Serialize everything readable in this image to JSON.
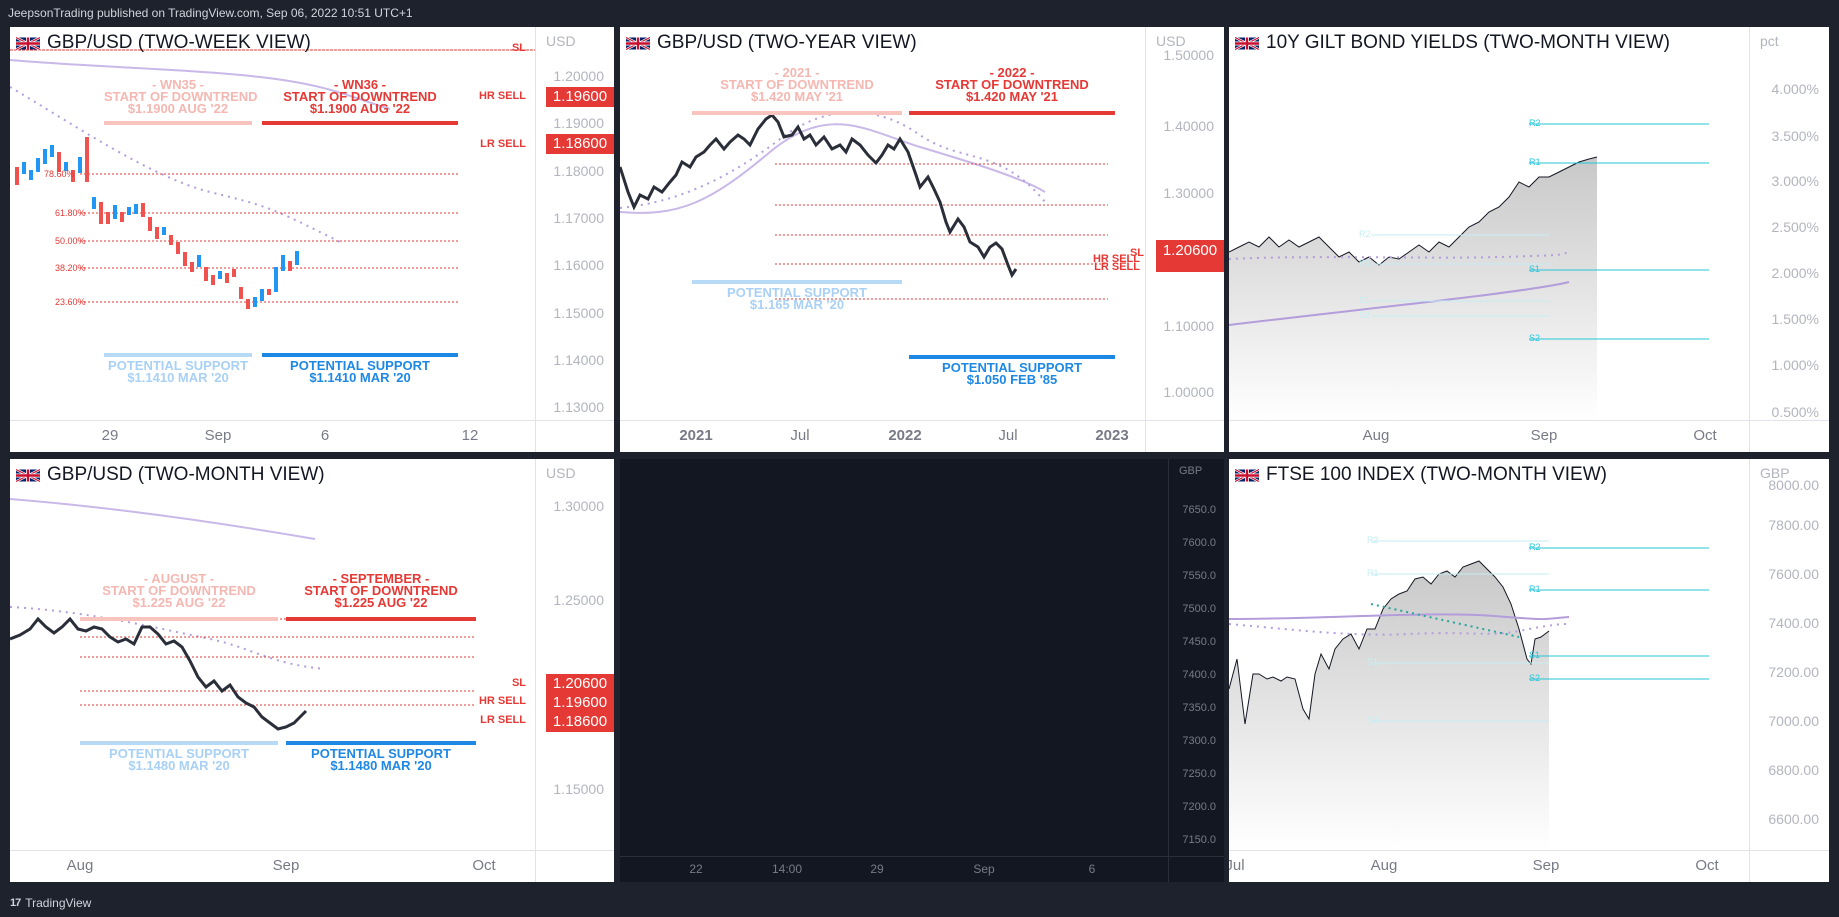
{
  "header": {
    "text": "JeepsonTrading published on TradingView.com, Sep 06, 2022 10:51 UTC+1"
  },
  "footer": {
    "logo": "17",
    "brand": "TradingView"
  },
  "colors": {
    "red": "#e53935",
    "blue": "#1e88e5",
    "cyan": "#26c6da",
    "lavender": "#b39ddb",
    "candle_up": "#2196f3",
    "candle_down": "#ef5350"
  },
  "panels": {
    "p1": {
      "title": "GBP/USD (TWO-WEEK VIEW)",
      "unit": "USD",
      "price_ticks": [
        "1.20000",
        "1.19000",
        "1.18000",
        "1.17000",
        "1.16000",
        "1.15000",
        "1.14000",
        "1.13000"
      ],
      "time_ticks": [
        "29",
        "Sep",
        "6",
        "12"
      ],
      "levels": {
        "sl": "SL",
        "hr_sell": "HR SELL",
        "lr_sell": "LR SELL"
      },
      "price_boxes": {
        "hr": "1.19600",
        "lr": "1.18600"
      },
      "fib_labels": [
        "78.60%",
        "61.80%",
        "50.00%",
        "38.20%",
        "23.60%"
      ],
      "ann_faded_top": [
        "- WN35 -",
        "START OF DOWNTREND",
        "$1.1900 AUG '22"
      ],
      "ann_red_top": [
        "- WN36 -",
        "START OF DOWNTREND",
        "$1.1900 AUG '22"
      ],
      "ann_faded_bottom": [
        "POTENTIAL SUPPORT",
        "$1.1410 MAR '20"
      ],
      "ann_blue_bottom": [
        "POTENTIAL SUPPORT",
        "$1.1410 MAR '20"
      ]
    },
    "p2": {
      "title": "GBP/USD (TWO-YEAR VIEW)",
      "unit": "USD",
      "price_ticks": [
        "1.50000",
        "1.40000",
        "1.30000",
        "1.10000",
        "1.00000"
      ],
      "time_ticks": [
        "2021",
        "Jul",
        "2022",
        "Jul",
        "2023"
      ],
      "levels": {
        "sl": "SL",
        "hr_sell": "HR SELL",
        "lr_sell": "LR SELL"
      },
      "price_box": "1.20600",
      "ann_faded_top": [
        "- 2021 -",
        "START OF DOWNTREND",
        "$1.420 MAY '21"
      ],
      "ann_red_top": [
        "- 2022 -",
        "START OF DOWNTREND",
        "$1.420 MAY '21"
      ],
      "ann_faded_bottom": [
        "POTENTIAL SUPPORT",
        "$1.165 MAR '20"
      ],
      "ann_blue_bottom": [
        "POTENTIAL SUPPORT",
        "$1.050 FEB '85"
      ]
    },
    "p3": {
      "title": "10Y GILT BOND YIELDS (TWO-MONTH VIEW)",
      "unit": "pct",
      "price_ticks": [
        "4.000%",
        "3.500%",
        "3.000%",
        "2.500%",
        "2.000%",
        "1.500%",
        "1.000%",
        "0.500%"
      ],
      "time_ticks": [
        "Aug",
        "Sep",
        "Oct"
      ],
      "pivot_labels": [
        "R2",
        "R1",
        "S1",
        "S2"
      ],
      "faded_pivot_labels": [
        "R2",
        "R1",
        "S1",
        "S2"
      ]
    },
    "p4": {
      "title": "GBP/USD (TWO-MONTH VIEW)",
      "unit": "USD",
      "price_ticks": [
        "1.30000",
        "1.25000",
        "1.15000"
      ],
      "time_ticks": [
        "Aug",
        "Sep",
        "Oct"
      ],
      "levels": {
        "sl": "SL",
        "hr_sell": "HR SELL",
        "lr_sell": "LR SELL"
      },
      "price_boxes": {
        "sl": "1.20600",
        "hr": "1.19600",
        "lr": "1.18600"
      },
      "ann_faded_top": [
        "- AUGUST -",
        "START OF DOWNTREND",
        "$1.225 AUG '22"
      ],
      "ann_red_top": [
        "- SEPTEMBER -",
        "START OF DOWNTREND",
        "$1.225 AUG '22"
      ],
      "ann_faded_bottom": [
        "POTENTIAL SUPPORT",
        "$1.1480 MAR '20"
      ],
      "ann_blue_bottom": [
        "POTENTIAL SUPPORT",
        "$1.1480 MAR '20"
      ]
    },
    "p5": {
      "unit": "GBP",
      "price_ticks": [
        "7650.0",
        "7600.0",
        "7550.0",
        "7500.0",
        "7450.0",
        "7400.0",
        "7350.0",
        "7300.0",
        "7250.0",
        "7200.0",
        "7150.0"
      ],
      "time_ticks": [
        "22",
        "14:00",
        "29",
        "Sep",
        "6"
      ]
    },
    "p6": {
      "title": "FTSE 100 INDEX (TWO-MONTH VIEW)",
      "unit": "GBP",
      "price_ticks": [
        "8000.00",
        "7800.00",
        "7600.00",
        "7400.00",
        "7200.00",
        "7000.00",
        "6800.00",
        "6600.00"
      ],
      "time_ticks": [
        "Jul",
        "Aug",
        "Sep",
        "Oct"
      ],
      "pivot_labels": [
        "R2",
        "R1",
        "S1",
        "S2"
      ],
      "faded_pivot_labels": [
        "R2",
        "R1",
        "S1",
        "S2"
      ]
    }
  }
}
